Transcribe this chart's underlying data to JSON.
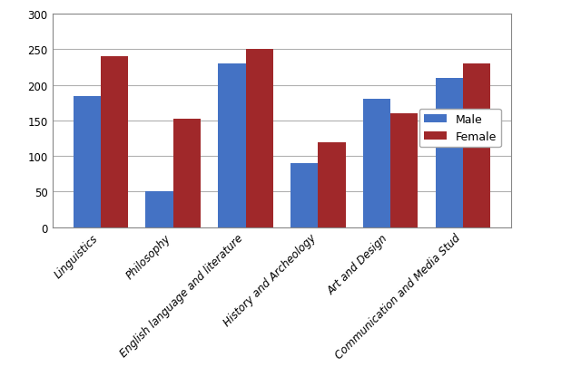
{
  "categories": [
    "Linguistics",
    "Philosophy",
    "English language and literature",
    "History and Archeology",
    "Art and Design",
    "Communication and Media Stud"
  ],
  "male_values": [
    185,
    50,
    230,
    90,
    180,
    210
  ],
  "female_values": [
    240,
    153,
    250,
    120,
    160,
    230
  ],
  "male_color": "#4472C4",
  "female_color": "#A0282A",
  "ylim": [
    0,
    300
  ],
  "yticks": [
    0,
    50,
    100,
    150,
    200,
    250,
    300
  ],
  "legend_labels": [
    "Male",
    "Female"
  ],
  "bar_width": 0.38,
  "figsize": [
    6.4,
    4.06
  ],
  "dpi": 100,
  "tick_fontsize": 8.5,
  "legend_fontsize": 9,
  "background_color": "#ffffff",
  "grid_color": "#b0b0b0"
}
